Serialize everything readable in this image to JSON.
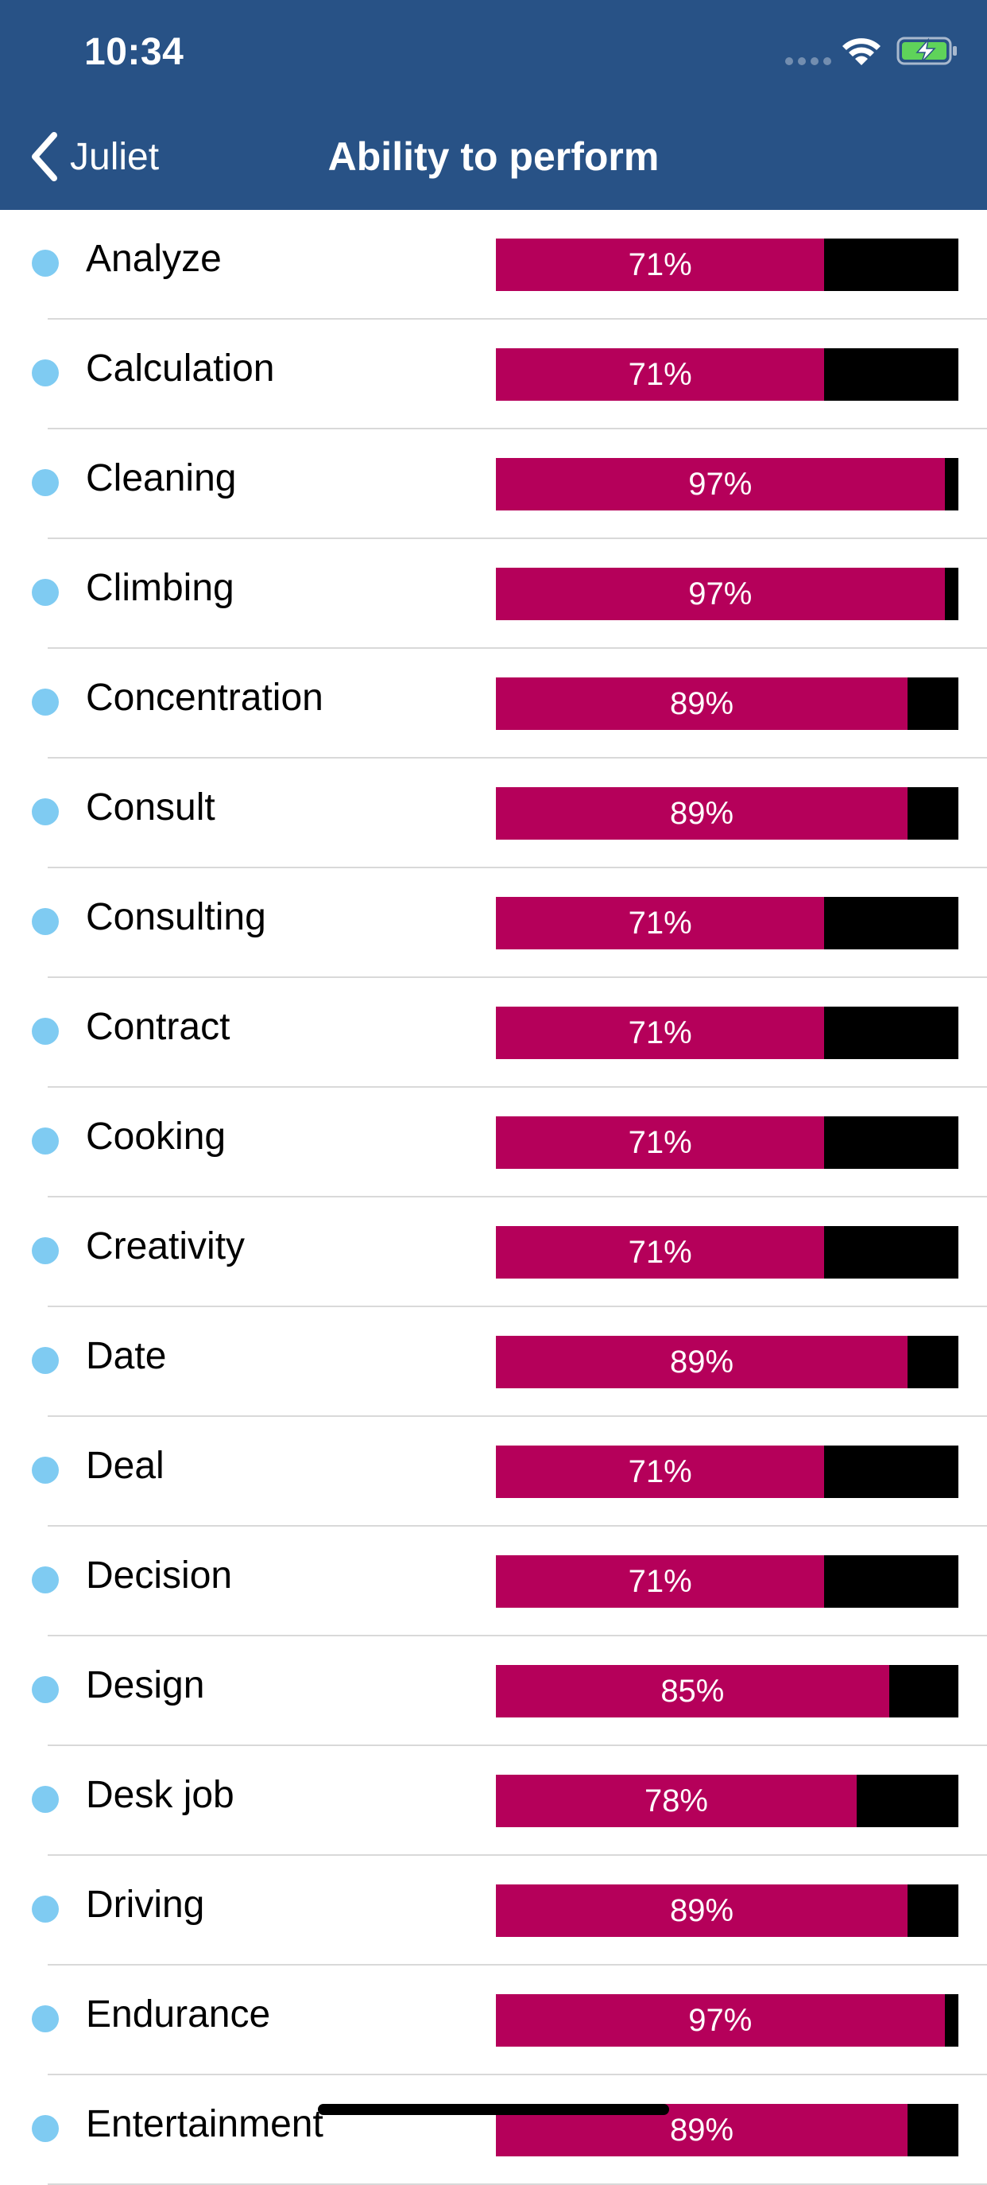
{
  "status_bar": {
    "time": "10:34"
  },
  "nav": {
    "back_label": "Juliet",
    "title": "Ability to perform"
  },
  "colors": {
    "header": "#285286",
    "bar_fill": "#b5005a",
    "bar_track": "#000000",
    "dot": "#7fcbf2"
  },
  "icons": {
    "back": "chevron-left-icon",
    "wifi": "wifi-icon",
    "battery": "battery-charging-icon",
    "signal": "signal-icon"
  },
  "abilities": [
    {
      "label": "Analyze",
      "percent": 71,
      "display": "71%"
    },
    {
      "label": "Calculation",
      "percent": 71,
      "display": "71%"
    },
    {
      "label": "Cleaning",
      "percent": 97,
      "display": "97%"
    },
    {
      "label": "Climbing",
      "percent": 97,
      "display": "97%"
    },
    {
      "label": "Concentration",
      "percent": 89,
      "display": "89%"
    },
    {
      "label": "Consult",
      "percent": 89,
      "display": "89%"
    },
    {
      "label": "Consulting",
      "percent": 71,
      "display": "71%"
    },
    {
      "label": "Contract",
      "percent": 71,
      "display": "71%"
    },
    {
      "label": "Cooking",
      "percent": 71,
      "display": "71%"
    },
    {
      "label": "Creativity",
      "percent": 71,
      "display": "71%"
    },
    {
      "label": "Date",
      "percent": 89,
      "display": "89%"
    },
    {
      "label": "Deal",
      "percent": 71,
      "display": "71%"
    },
    {
      "label": "Decision",
      "percent": 71,
      "display": "71%"
    },
    {
      "label": "Design",
      "percent": 85,
      "display": "85%"
    },
    {
      "label": "Desk job",
      "percent": 78,
      "display": "78%"
    },
    {
      "label": "Driving",
      "percent": 89,
      "display": "89%"
    },
    {
      "label": "Endurance",
      "percent": 97,
      "display": "97%"
    },
    {
      "label": "Entertainment",
      "percent": 89,
      "display": "89%"
    }
  ]
}
